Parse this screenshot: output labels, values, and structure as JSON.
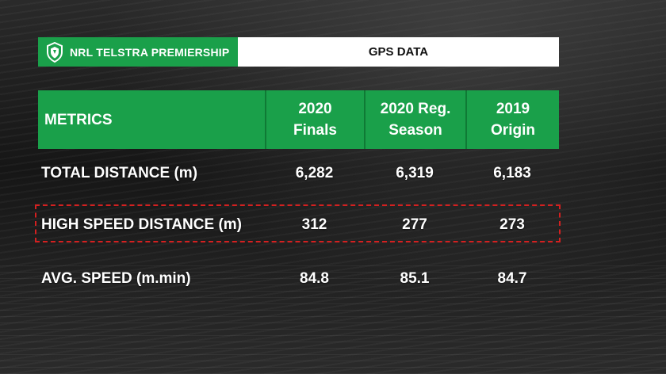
{
  "header": {
    "brand_label": "NRL TELSTRA PREMIERSHIP",
    "logo_icon": "nrl-shield-icon",
    "title": "GPS DATA"
  },
  "table": {
    "columns": [
      {
        "lines": [
          "METRICS"
        ]
      },
      {
        "lines": [
          "2020",
          "Finals"
        ]
      },
      {
        "lines": [
          "2020 Reg.",
          "Season"
        ]
      },
      {
        "lines": [
          "2019",
          "Origin"
        ]
      }
    ],
    "rows": [
      {
        "metric": "TOTAL DISTANCE (m)",
        "values": [
          "6,282",
          "6,319",
          "6,183"
        ]
      },
      {
        "metric": "HIGH SPEED DISTANCE (m)",
        "values": [
          "312",
          "277",
          "273"
        ]
      },
      {
        "metric": "AVG. SPEED (m.min)",
        "values": [
          "84.8",
          "85.1",
          "84.7"
        ]
      }
    ]
  },
  "highlighted_row": "HIGH SPEED DISTANCE (m)",
  "colors": {
    "accent_green": "#1aa04a",
    "highlight_red": "#d42020",
    "background": "#1c1c1c"
  }
}
